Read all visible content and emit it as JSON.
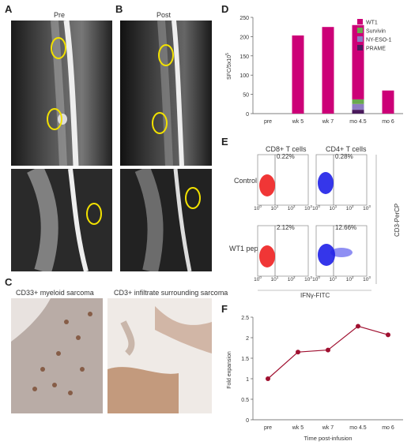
{
  "panels": {
    "a": {
      "letter": "A",
      "title": "Pre"
    },
    "b": {
      "letter": "B",
      "title": "Post"
    },
    "c": {
      "letter": "C",
      "left_caption": "CD33+ myeloid sarcoma",
      "right_caption": "CD3+ infiltrate surrounding sarcoma"
    },
    "d": {
      "letter": "D"
    },
    "e": {
      "letter": "E",
      "col1": "CD8+ T cells",
      "col2": "CD4+ T cells",
      "row1": "Control",
      "row2": "WT1 pepmix",
      "pct": [
        "0.22%",
        "0.28%",
        "2.12%",
        "12.66%"
      ],
      "ylabel": "CD3-PerCP",
      "xlabel": "IFNγ-FITC",
      "ticks": [
        "10",
        "10",
        "10",
        "10"
      ],
      "exps": [
        "0",
        "1",
        "2",
        "3"
      ]
    },
    "f": {
      "letter": "F"
    }
  },
  "chart_data": [
    {
      "type": "bar",
      "panel": "D",
      "stacked": true,
      "categories": [
        "pre",
        "wk 5",
        "wk 7",
        "mo 4.5",
        "mo 6"
      ],
      "ylabel": "SFC/5x10",
      "ylabel_sup": "5",
      "ylim": [
        0,
        250
      ],
      "yticks": [
        "0",
        "50",
        "100",
        "150",
        "200",
        "250"
      ],
      "legend_position": "top-right",
      "series": [
        {
          "name": "PRAME",
          "values": [
            0,
            0,
            0,
            10,
            0
          ],
          "color": "#4a1a5c"
        },
        {
          "name": "NY-ESO-1",
          "values": [
            0,
            0,
            0,
            15,
            0
          ],
          "color": "#8e7cc3"
        },
        {
          "name": "Survivin",
          "values": [
            0,
            0,
            0,
            12,
            0
          ],
          "color": "#6aa84f"
        },
        {
          "name": "WT1",
          "values": [
            0,
            203,
            225,
            193,
            60
          ],
          "color": "#cc0077"
        }
      ]
    },
    {
      "type": "line",
      "panel": "F",
      "categories": [
        "pre",
        "wk 5",
        "wk 7",
        "mo 4.5",
        "mo 6"
      ],
      "values": [
        1.0,
        1.65,
        1.7,
        2.28,
        2.07
      ],
      "ylabel": "Fold expansion",
      "xlabel": "Time post-infusion",
      "ylim": [
        0,
        2.5
      ],
      "yticks": [
        "0",
        "0.5",
        "1",
        "1.5",
        "2",
        "2.5"
      ],
      "color": "#a01030"
    }
  ]
}
